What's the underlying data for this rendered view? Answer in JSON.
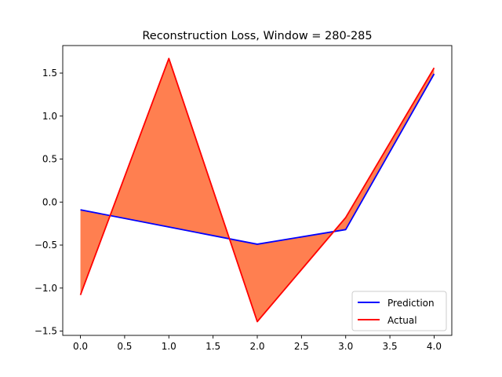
{
  "chart_data": {
    "type": "line",
    "title": "Reconstruction Loss, Window = 280-285",
    "xlabel": "",
    "ylabel": "",
    "x": [
      0.0,
      1.0,
      2.0,
      3.0,
      4.0
    ],
    "xlim": [
      -0.2,
      4.2
    ],
    "ylim": [
      -1.55,
      1.82
    ],
    "xticks": [
      0.0,
      0.5,
      1.0,
      1.5,
      2.0,
      2.5,
      3.0,
      3.5,
      4.0
    ],
    "xtick_labels": [
      "0.0",
      "0.5",
      "1.0",
      "1.5",
      "2.0",
      "2.5",
      "3.0",
      "3.5",
      "4.0"
    ],
    "yticks": [
      -1.5,
      -1.0,
      -0.5,
      0.0,
      0.5,
      1.0,
      1.5
    ],
    "ytick_labels": [
      "−1.5",
      "−1.0",
      "−0.5",
      "0.0",
      "0.5",
      "1.0",
      "1.5"
    ],
    "series": [
      {
        "name": "Prediction",
        "color": "#0000ff",
        "values": [
          -0.09,
          -0.29,
          -0.49,
          -0.32,
          1.49
        ]
      },
      {
        "name": "Actual",
        "color": "#ff0000",
        "values": [
          -1.08,
          1.67,
          -1.39,
          -0.18,
          1.56
        ]
      }
    ],
    "fill_between": {
      "color": "#ff7f50"
    },
    "legend": {
      "placement": "lower-right"
    },
    "grid": false
  }
}
